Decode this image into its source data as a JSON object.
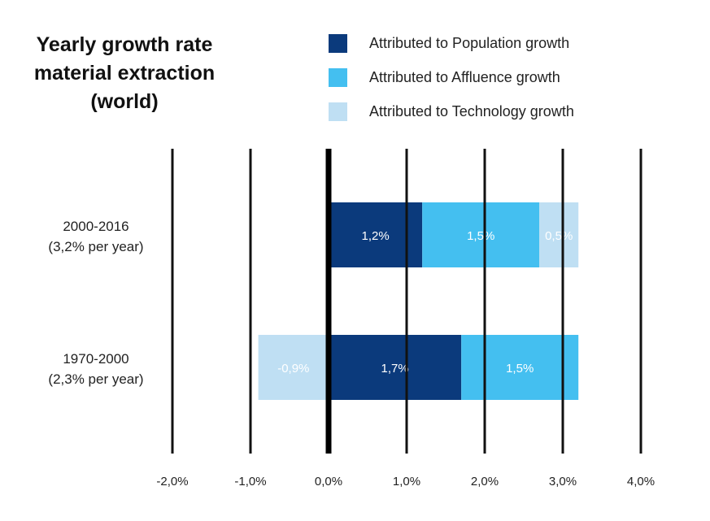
{
  "title_lines": [
    "Yearly growth rate",
    "material extraction",
    "(world)"
  ],
  "colors": {
    "population": "#0b3a7c",
    "affluence": "#44bff0",
    "technology": "#bfdff3",
    "gridline": "#111111",
    "zero_line": "#000000",
    "bar_label": "#ffffff"
  },
  "chart_data": {
    "type": "bar",
    "orientation": "horizontal",
    "stacked": true,
    "title": "Yearly growth rate material extraction (world)",
    "xlim": [
      -2.0,
      4.0
    ],
    "x_ticks": [
      -2.0,
      -1.0,
      0.0,
      1.0,
      2.0,
      3.0,
      4.0
    ],
    "x_tick_labels": [
      "-2,0%",
      "-1,0%",
      "0,0%",
      "1,0%",
      "2,0%",
      "3,0%",
      "4,0%"
    ],
    "grid": true,
    "legend_position": "top-right",
    "categories": [
      {
        "label": "2000-2016",
        "sublabel": "(3,2% per year)"
      },
      {
        "label": "1970-2000",
        "sublabel": "(2,3% per year)"
      }
    ],
    "series": [
      {
        "key": "population",
        "name": "Attributed to Population growth",
        "values": [
          1.2,
          1.7
        ],
        "labels": [
          "1,2%",
          "1,7%"
        ]
      },
      {
        "key": "affluence",
        "name": "Attributed to Affluence growth",
        "values": [
          1.5,
          1.5
        ],
        "labels": [
          "1,5%",
          "1,5%"
        ]
      },
      {
        "key": "technology",
        "name": "Attributed to Technology growth",
        "values": [
          0.5,
          -0.9
        ],
        "labels": [
          "0,5%",
          "-0,9%"
        ]
      }
    ]
  }
}
